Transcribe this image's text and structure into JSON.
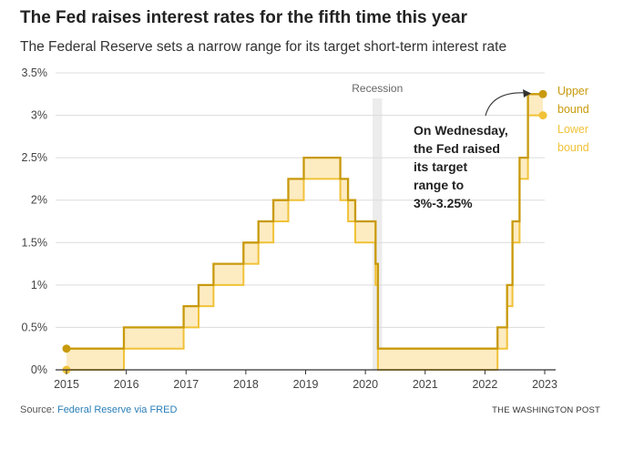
{
  "header": {
    "title": "The Fed raises interest rates for the fifth time this year",
    "subtitle": "The Federal Reserve sets a narrow range for its target short-term interest rate"
  },
  "footer": {
    "source_prefix": "Source: ",
    "source_link": "Federal Reserve via FRED",
    "brand": "THE WASHINGTON POST"
  },
  "colors": {
    "upper": "#c89a0c",
    "lower": "#f0c238",
    "fill": "#fdebc1",
    "recession": "#ececec",
    "grid": "#dcdcdc",
    "axis": "#333333"
  },
  "chart_data": {
    "type": "area",
    "title": "The Fed raises interest rates for the fifth time this year",
    "subtitle": "The Federal Reserve sets a narrow range for its target short-term interest rate",
    "xlim": [
      2015,
      2023
    ],
    "ylim": [
      0,
      3.5
    ],
    "x_ticks": [
      "2015",
      "2016",
      "2017",
      "2018",
      "2019",
      "2020",
      "2021",
      "2022",
      "2023"
    ],
    "y_ticks": [
      {
        "value": 0,
        "label": "0%"
      },
      {
        "value": 0.5,
        "label": "0.5%"
      },
      {
        "value": 1,
        "label": "1%"
      },
      {
        "value": 1.5,
        "label": "1.5%"
      },
      {
        "value": 2,
        "label": "2%"
      },
      {
        "value": 2.5,
        "label": "2.5%"
      },
      {
        "value": 3,
        "label": "3%"
      },
      {
        "value": 3.5,
        "label": "3.5%"
      }
    ],
    "grid": true,
    "recession": {
      "label": "Recession",
      "start": 2020.12,
      "end": 2020.28
    },
    "series": [
      {
        "name": "Upper bound",
        "label_lines": [
          "Upper",
          "bound"
        ],
        "points": [
          [
            2015.0,
            0.25
          ],
          [
            2015.96,
            0.5
          ],
          [
            2016.96,
            0.75
          ],
          [
            2017.21,
            1.0
          ],
          [
            2017.46,
            1.25
          ],
          [
            2017.96,
            1.5
          ],
          [
            2018.21,
            1.75
          ],
          [
            2018.46,
            2.0
          ],
          [
            2018.71,
            2.25
          ],
          [
            2018.97,
            2.5
          ],
          [
            2019.58,
            2.25
          ],
          [
            2019.71,
            2.0
          ],
          [
            2019.83,
            1.75
          ],
          [
            2020.17,
            1.25
          ],
          [
            2020.21,
            0.25
          ],
          [
            2022.21,
            0.5
          ],
          [
            2022.37,
            1.0
          ],
          [
            2022.46,
            1.75
          ],
          [
            2022.58,
            2.5
          ],
          [
            2022.72,
            3.25
          ],
          [
            2022.97,
            3.25
          ]
        ]
      },
      {
        "name": "Lower bound",
        "label_lines": [
          "Lower",
          "bound"
        ],
        "points": [
          [
            2015.0,
            0.0
          ],
          [
            2015.96,
            0.25
          ],
          [
            2016.96,
            0.5
          ],
          [
            2017.21,
            0.75
          ],
          [
            2017.46,
            1.0
          ],
          [
            2017.96,
            1.25
          ],
          [
            2018.21,
            1.5
          ],
          [
            2018.46,
            1.75
          ],
          [
            2018.71,
            2.0
          ],
          [
            2018.97,
            2.25
          ],
          [
            2019.58,
            2.0
          ],
          [
            2019.71,
            1.75
          ],
          [
            2019.83,
            1.5
          ],
          [
            2020.17,
            1.0
          ],
          [
            2020.21,
            0.0
          ],
          [
            2022.21,
            0.25
          ],
          [
            2022.37,
            0.75
          ],
          [
            2022.46,
            1.5
          ],
          [
            2022.58,
            2.25
          ],
          [
            2022.72,
            3.0
          ],
          [
            2022.97,
            3.0
          ]
        ]
      }
    ],
    "annotation": {
      "lines": [
        "On Wednesday,",
        "the Fed raised",
        "its target",
        "range to",
        "3%-3.25%"
      ]
    }
  }
}
